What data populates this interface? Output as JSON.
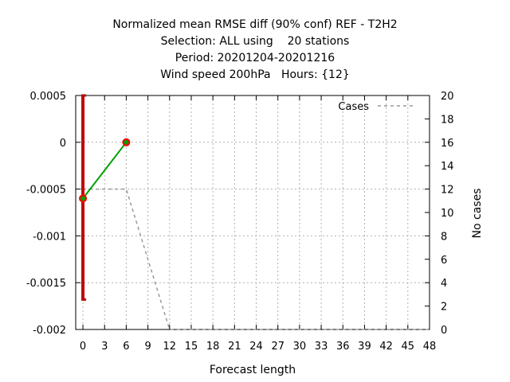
{
  "chart_data": {
    "type": "line",
    "title_lines": [
      "Normalized mean RMSE diff (90% conf) REF - T2H2",
      "Selection: ALL using    20 stations",
      "Period: 20201204-20201216",
      "Wind speed 200hPa   Hours: {12}"
    ],
    "xlabel": "Forecast length",
    "ylabel_right": "No cases",
    "x_ticks": [
      0,
      3,
      6,
      9,
      12,
      15,
      18,
      21,
      24,
      27,
      30,
      33,
      36,
      39,
      42,
      45,
      48
    ],
    "xlim": [
      -1,
      48
    ],
    "y_left": {
      "ylim": [
        -0.002,
        0.0005
      ],
      "ticks": [
        0.0005,
        0,
        -0.0005,
        -0.001,
        -0.0015,
        -0.002
      ],
      "tick_labels": [
        "0.0005",
        "0",
        "-0.0005",
        "-0.001",
        "-0.0015",
        "-0.002"
      ]
    },
    "y_right": {
      "ylim": [
        0,
        20
      ],
      "ticks": [
        20,
        18,
        16,
        14,
        12,
        10,
        8,
        6,
        4,
        2,
        0
      ],
      "tick_labels": [
        "20",
        "18",
        "16",
        "14",
        "12",
        "10",
        "8",
        "6",
        "4",
        "2",
        "0"
      ]
    },
    "grid": true,
    "legend": {
      "position": "top-right",
      "entries": [
        "Cases"
      ]
    },
    "series": [
      {
        "axis": "left",
        "color": "#00a000",
        "marker_color": "#ff0000",
        "x": [
          0,
          6
        ],
        "y": [
          -0.0006,
          0.0
        ]
      },
      {
        "name": "Cases",
        "axis": "right",
        "color": "#999999",
        "dash": true,
        "x": [
          0,
          6,
          12,
          48
        ],
        "y": [
          12,
          12,
          0,
          0
        ]
      }
    ],
    "error_bar": {
      "color": "#c00000",
      "x": 0,
      "low": -0.00168,
      "high": 0.0005
    }
  }
}
